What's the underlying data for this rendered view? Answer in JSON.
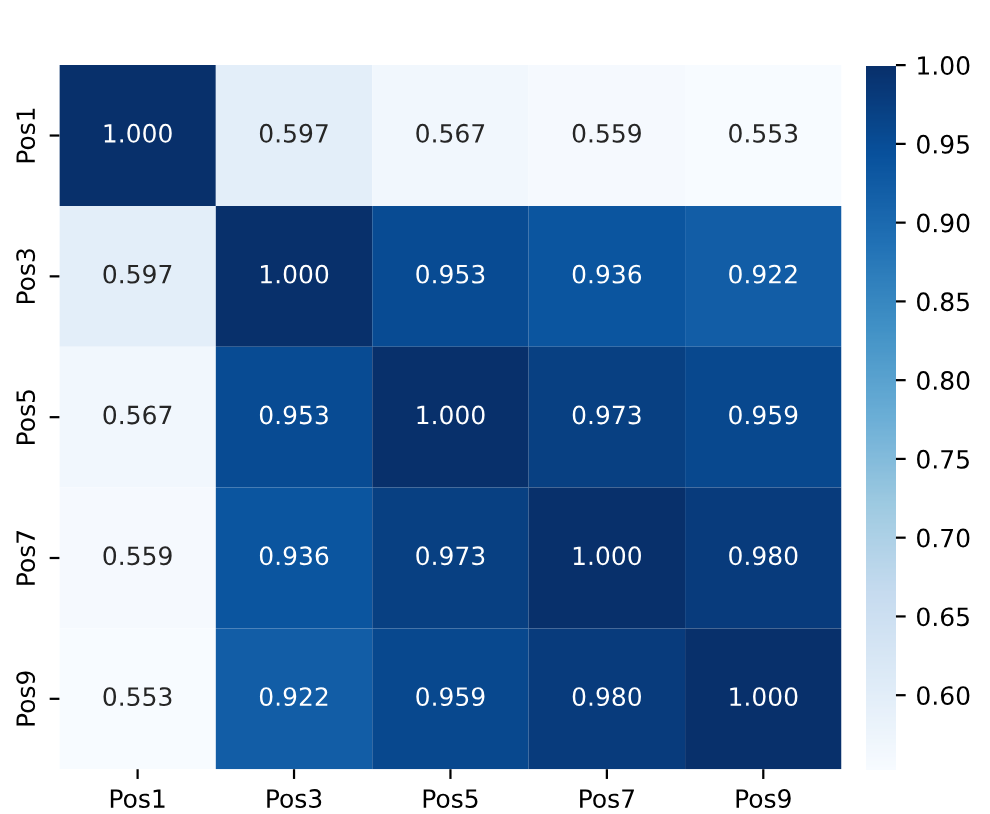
{
  "chart_data": {
    "type": "heatmap",
    "categories": [
      "Pos1",
      "Pos3",
      "Pos5",
      "Pos7",
      "Pos9"
    ],
    "y_categories": [
      "Pos1",
      "Pos3",
      "Pos5",
      "Pos7",
      "Pos9"
    ],
    "cells": [
      [
        1.0,
        0.597,
        0.567,
        0.559,
        0.553
      ],
      [
        0.597,
        1.0,
        0.953,
        0.936,
        0.922
      ],
      [
        0.567,
        0.953,
        1.0,
        0.973,
        0.959
      ],
      [
        0.559,
        0.936,
        0.973,
        1.0,
        0.98
      ],
      [
        0.553,
        0.922,
        0.959,
        0.98,
        1.0
      ]
    ],
    "cell_labels": [
      [
        "1.000",
        "0.597",
        "0.567",
        "0.559",
        "0.553"
      ],
      [
        "0.597",
        "1.000",
        "0.953",
        "0.936",
        "0.922"
      ],
      [
        "0.567",
        "0.953",
        "1.000",
        "0.973",
        "0.959"
      ],
      [
        "0.559",
        "0.936",
        "0.973",
        "1.000",
        "0.980"
      ],
      [
        "0.553",
        "0.922",
        "0.959",
        "0.980",
        "1.000"
      ]
    ],
    "clim": [
      0.553,
      1.0
    ],
    "cticks": [
      {
        "value": 0.6,
        "label": "0.60"
      },
      0.65,
      {
        "value": 0.7,
        "label": "0.70"
      },
      0.75,
      {
        "value": 0.8,
        "label": "0.80"
      },
      0.85,
      {
        "value": 0.9,
        "label": "0.90"
      },
      0.95,
      {
        "value": 1.0,
        "label": "1.00"
      }
    ]
  }
}
